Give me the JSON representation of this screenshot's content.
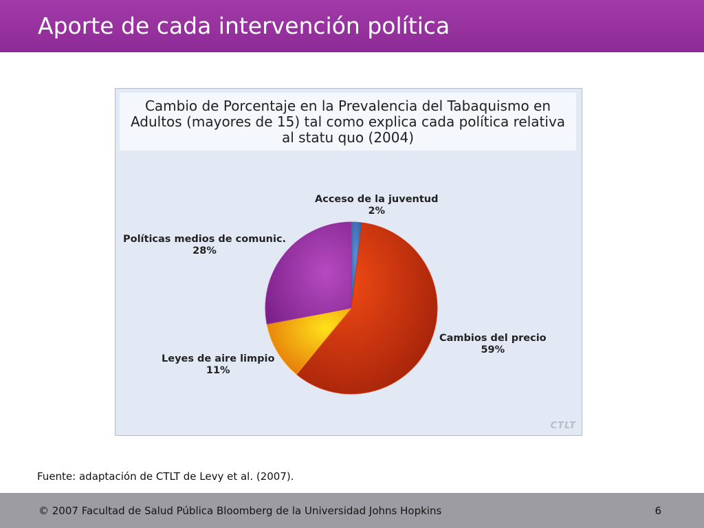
{
  "slide": {
    "title": "Aporte de cada intervención política",
    "source": "Fuente: adaptación de CTLT de Levy et al. (2007).",
    "footer": "© 2007 Facultad de Salud Pública Bloomberg de la Universidad Johns Hopkins",
    "page_number": "6"
  },
  "chart_data": {
    "type": "pie",
    "title_lines": [
      "Cambio de Porcentaje en la Prevalencia del Tabaquismo en",
      "Adultos (mayores de 15) tal como explica cada política relativa",
      "al statu quo (2004)"
    ],
    "slices": [
      {
        "name": "Acceso de la juventud",
        "value": 2,
        "value_label": "2%",
        "color": "#3e6fb3"
      },
      {
        "name": "Cambios del precio",
        "value": 59,
        "value_label": "59%",
        "color": "#d2320d"
      },
      {
        "name": "Leyes de aire limpio",
        "value": 11,
        "value_label": "11%",
        "color": "#f4a80e"
      },
      {
        "name": "Políticas medios de comunic.",
        "value": 28,
        "value_label": "28%",
        "color": "#9c33a6"
      }
    ],
    "watermark": "CTLT"
  }
}
